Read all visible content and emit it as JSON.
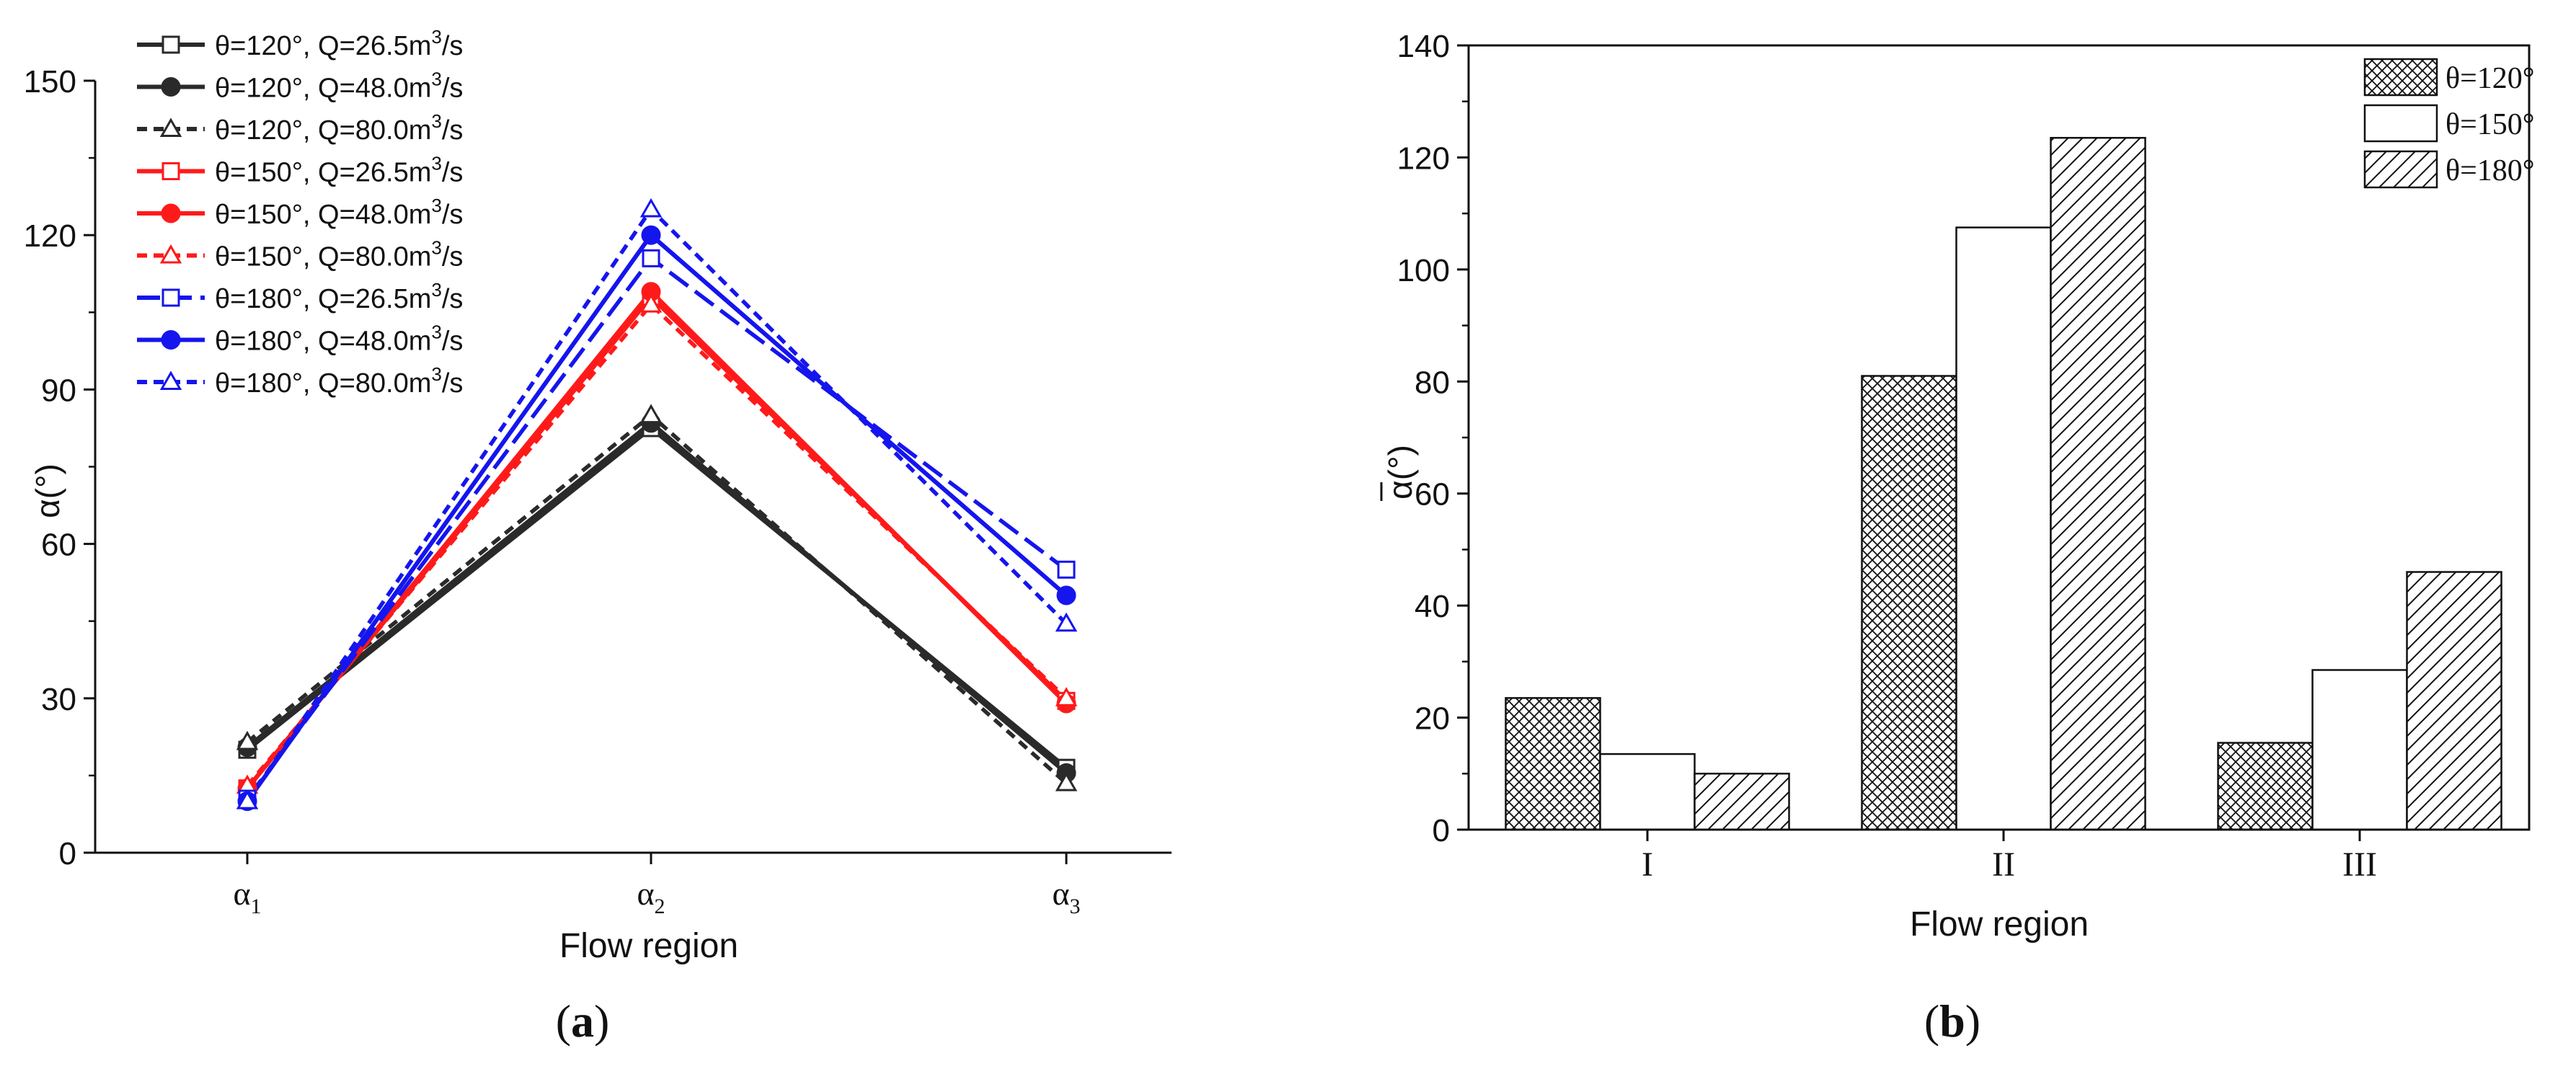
{
  "chart_data": [
    {
      "panel_label": "a",
      "type": "line",
      "xlabel": "Flow region",
      "ylabel": "α(°)",
      "categories": [
        {
          "base": "α",
          "sub": "1"
        },
        {
          "base": "α",
          "sub": "2"
        },
        {
          "base": "α",
          "sub": "3"
        }
      ],
      "ylim": [
        0,
        150
      ],
      "yticks": [
        "0",
        "30",
        "60",
        "90",
        "120",
        "150"
      ],
      "legend_position": "top-left",
      "series": [
        {
          "name": {
            "lead": "θ=120°, Q=26.5m",
            "sup": "3",
            "tail": "/s"
          },
          "color": "#2a2a2a",
          "dash": "solid",
          "marker": "square",
          "marker_filled": false,
          "values": [
            20,
            82.5,
            16.5
          ]
        },
        {
          "name": {
            "lead": "θ=120°, Q=48.0m",
            "sup": "3",
            "tail": "/s"
          },
          "color": "#2a2a2a",
          "dash": "solid",
          "marker": "circle",
          "marker_filled": true,
          "values": [
            20.5,
            83.5,
            15.5
          ]
        },
        {
          "name": {
            "lead": "θ=120°, Q=80.0m",
            "sup": "3",
            "tail": "/s"
          },
          "color": "#2a2a2a",
          "dash": "short",
          "marker": "triangle",
          "marker_filled": false,
          "values": [
            21.5,
            85,
            13.5
          ]
        },
        {
          "name": {
            "lead": "θ=150°, Q=26.5m",
            "sup": "3",
            "tail": "/s"
          },
          "color": "#ff1a1a",
          "dash": "solid",
          "marker": "square",
          "marker_filled": false,
          "values": [
            12.5,
            108,
            29.5
          ]
        },
        {
          "name": {
            "lead": "θ=150°, Q=48.0m",
            "sup": "3",
            "tail": "/s"
          },
          "color": "#ff1a1a",
          "dash": "solid",
          "marker": "circle",
          "marker_filled": true,
          "values": [
            12.5,
            109,
            29
          ]
        },
        {
          "name": {
            "lead": "θ=150°, Q=80.0m",
            "sup": "3",
            "tail": "/s"
          },
          "color": "#ff1a1a",
          "dash": "short",
          "marker": "triangle",
          "marker_filled": false,
          "values": [
            13,
            106.5,
            30
          ]
        },
        {
          "name": {
            "lead": "θ=180°, Q=26.5m",
            "sup": "3",
            "tail": "/s"
          },
          "color": "#1515ee",
          "dash": "long",
          "marker": "square",
          "marker_filled": false,
          "values": [
            10.5,
            115.5,
            55
          ]
        },
        {
          "name": {
            "lead": "θ=180°, Q=48.0m",
            "sup": "3",
            "tail": "/s"
          },
          "color": "#1515ee",
          "dash": "solid",
          "marker": "circle",
          "marker_filled": true,
          "values": [
            10,
            120,
            50
          ]
        },
        {
          "name": {
            "lead": "θ=180°, Q=80.0m",
            "sup": "3",
            "tail": "/s"
          },
          "color": "#1515ee",
          "dash": "short",
          "marker": "triangle",
          "marker_filled": false,
          "values": [
            10,
            125,
            44.5
          ]
        }
      ]
    },
    {
      "panel_label": "b",
      "type": "bar",
      "xlabel": "Flow region",
      "ylabel": {
        "base": "α",
        "tail": "(°)",
        "overline": true
      },
      "categories": [
        "I",
        "II",
        "III"
      ],
      "ylim": [
        0,
        140
      ],
      "yticks": [
        "0",
        "20",
        "40",
        "60",
        "80",
        "100",
        "120",
        "140"
      ],
      "legend_position": "top-right",
      "series": [
        {
          "name": "θ=120°",
          "pattern": "crosshatch",
          "values": [
            23.5,
            81,
            15.5
          ]
        },
        {
          "name": "θ=150°",
          "pattern": "none",
          "values": [
            13.5,
            107.5,
            28.5
          ]
        },
        {
          "name": "θ=180°",
          "pattern": "diagonal",
          "values": [
            10,
            123.5,
            46
          ]
        }
      ]
    }
  ]
}
